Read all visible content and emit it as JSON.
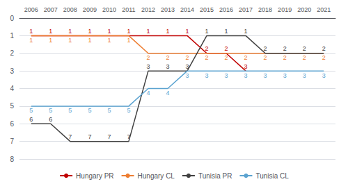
{
  "chart_data": {
    "type": "line",
    "x": [
      2006,
      2007,
      2008,
      2009,
      2010,
      2011,
      2012,
      2013,
      2014,
      2015,
      2016,
      2017,
      2018,
      2019,
      2020,
      2021
    ],
    "xlim": [
      2005.4,
      2021.6
    ],
    "xticks": [
      2006,
      2007,
      2008,
      2009,
      2010,
      2011,
      2012,
      2013,
      2014,
      2015,
      2016,
      2017,
      2018,
      2019,
      2020,
      2021
    ],
    "ylim": [
      8,
      0
    ],
    "yticks": [
      0,
      1,
      2,
      3,
      4,
      5,
      6,
      7,
      8
    ],
    "grid": true,
    "legend": "bottom",
    "data_labels": true,
    "series": [
      {
        "name": "Hungary PR",
        "color": "#c00000",
        "values": [
          1,
          1,
          1,
          1,
          1,
          1,
          1,
          1,
          1,
          2,
          2,
          3,
          null,
          null,
          null,
          null
        ]
      },
      {
        "name": "Hungary CL",
        "color": "#ed7d31",
        "values": [
          1,
          1,
          1,
          1,
          1,
          1,
          2,
          2,
          2,
          2,
          2,
          2,
          2,
          2,
          2,
          2
        ]
      },
      {
        "name": "Tunisia PR",
        "color": "#404040",
        "values": [
          6,
          6,
          7,
          7,
          7,
          7,
          3,
          3,
          3,
          1,
          1,
          1,
          2,
          2,
          2,
          2
        ]
      },
      {
        "name": "Tunisia CL",
        "color": "#5ba3d0",
        "values": [
          5,
          5,
          5,
          5,
          5,
          5,
          4,
          4,
          3,
          3,
          3,
          3,
          3,
          3,
          3,
          3
        ]
      }
    ]
  }
}
